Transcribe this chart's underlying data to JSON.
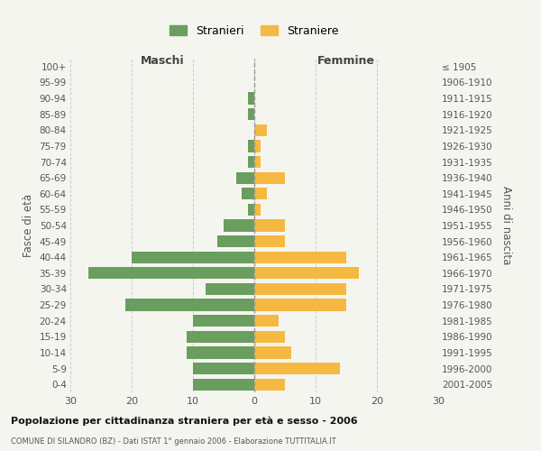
{
  "age_groups": [
    "0-4",
    "5-9",
    "10-14",
    "15-19",
    "20-24",
    "25-29",
    "30-34",
    "35-39",
    "40-44",
    "45-49",
    "50-54",
    "55-59",
    "60-64",
    "65-69",
    "70-74",
    "75-79",
    "80-84",
    "85-89",
    "90-94",
    "95-99",
    "100+"
  ],
  "birth_years": [
    "2001-2005",
    "1996-2000",
    "1991-1995",
    "1986-1990",
    "1981-1985",
    "1976-1980",
    "1971-1975",
    "1966-1970",
    "1961-1965",
    "1956-1960",
    "1951-1955",
    "1946-1950",
    "1941-1945",
    "1936-1940",
    "1931-1935",
    "1926-1930",
    "1921-1925",
    "1916-1920",
    "1911-1915",
    "1906-1910",
    "≤ 1905"
  ],
  "males": [
    10,
    10,
    11,
    11,
    10,
    21,
    8,
    27,
    20,
    6,
    5,
    1,
    2,
    3,
    1,
    1,
    0,
    1,
    1,
    0,
    0
  ],
  "females": [
    5,
    14,
    6,
    5,
    4,
    15,
    15,
    17,
    15,
    5,
    5,
    1,
    2,
    5,
    1,
    1,
    2,
    0,
    0,
    0,
    0
  ],
  "male_color": "#6a9e5f",
  "female_color": "#f5b942",
  "background_color": "#f5f5f0",
  "title": "Popolazione per cittadinanza straniera per età e sesso - 2006",
  "subtitle": "COMUNE DI SILANDRO (BZ) - Dati ISTAT 1° gennaio 2006 - Elaborazione TUTTITALIA.IT",
  "header_left": "Maschi",
  "header_right": "Femmine",
  "ylabel_left": "Fasce di età",
  "ylabel_right": "Anni di nascita",
  "legend_male": "Stranieri",
  "legend_female": "Straniere",
  "xlim": 30,
  "bar_height": 0.75,
  "grid_color": "#cccccc"
}
